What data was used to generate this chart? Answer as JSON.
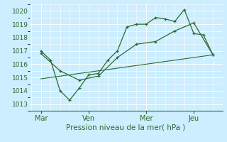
{
  "xlabel": "Pression niveau de la mer( hPa )",
  "bg_color": "#cceeff",
  "grid_color": "#ffffff",
  "line_color": "#2d6a2d",
  "sep_color": "#aabbbb",
  "ylim": [
    1012.5,
    1020.5
  ],
  "xlim": [
    -0.1,
    10.0
  ],
  "day_labels": [
    "Mar",
    "Ven",
    "Mer",
    "Jeu"
  ],
  "day_positions": [
    0.5,
    3.0,
    6.0,
    8.5
  ],
  "vline_positions": [
    0.5,
    3.0,
    6.0,
    8.5
  ],
  "series1_x": [
    0.5,
    1.0,
    1.5,
    2.0,
    2.5,
    3.0,
    3.5,
    4.0,
    4.5,
    5.0,
    5.5,
    6.0,
    6.5,
    7.0,
    7.5,
    8.0,
    8.5,
    9.0,
    9.5
  ],
  "series1_y": [
    1017.0,
    1016.3,
    1014.0,
    1013.3,
    1014.2,
    1015.2,
    1015.3,
    1016.3,
    1017.0,
    1018.8,
    1019.0,
    1019.0,
    1019.5,
    1019.4,
    1019.2,
    1020.1,
    1018.3,
    1018.2,
    1016.7
  ],
  "series2_x": [
    0.5,
    1.5,
    2.5,
    3.5,
    4.5,
    5.5,
    6.5,
    7.5,
    8.5,
    9.5
  ],
  "series2_y": [
    1016.8,
    1015.5,
    1014.8,
    1015.1,
    1016.5,
    1017.5,
    1017.7,
    1018.5,
    1019.1,
    1016.7
  ],
  "series3_x": [
    0.5,
    9.5
  ],
  "series3_y": [
    1014.9,
    1016.7
  ],
  "yticks": [
    1013,
    1014,
    1015,
    1016,
    1017,
    1018,
    1019,
    1020
  ]
}
